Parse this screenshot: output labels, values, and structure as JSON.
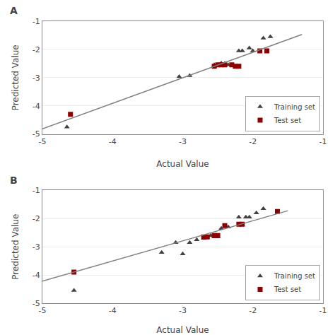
{
  "chart_data": [
    {
      "type": "scatter",
      "title": "A",
      "xlabel": "Actual Value",
      "ylabel": "Predicted Value",
      "xlim": [
        -5,
        -1
      ],
      "ylim": [
        -5,
        -1
      ],
      "xticks": [
        -5,
        -4,
        -3,
        -2,
        -1
      ],
      "yticks": [
        -5,
        -4,
        -3,
        -2,
        -1
      ],
      "grid": "y",
      "legend": "lower right",
      "series": [
        {
          "name": "Training set",
          "color": "#404040",
          "marker": "triangle",
          "x": [
            -4.65,
            -3.05,
            -2.9,
            -2.55,
            -2.55,
            -2.5,
            -2.45,
            -2.45,
            -2.4,
            -2.35,
            -2.3,
            -2.2,
            -2.15,
            -2.05,
            -2.0,
            -1.85,
            -1.75
          ],
          "values": [
            -4.75,
            -2.97,
            -2.93,
            -2.55,
            -2.6,
            -2.55,
            -2.5,
            -2.5,
            -2.5,
            -2.55,
            -2.55,
            -2.05,
            -2.05,
            -1.95,
            -2.05,
            -1.6,
            -1.55
          ]
        },
        {
          "name": "Test set",
          "color": "#8B0000",
          "marker": "square",
          "x": [
            -4.6,
            -2.55,
            -2.5,
            -2.45,
            -2.4,
            -2.3,
            -2.25,
            -2.2,
            -1.9,
            -1.8
          ],
          "values": [
            -4.3,
            -2.6,
            -2.55,
            -2.55,
            -2.55,
            -2.55,
            -2.6,
            -2.6,
            -2.05,
            -2.05
          ]
        },
        {
          "type": "line",
          "color": "#808080",
          "x": [
            -5.0,
            -1.3
          ],
          "values": [
            -4.82,
            -1.47
          ]
        }
      ]
    },
    {
      "type": "scatter",
      "title": "B",
      "xlabel": "Actual Value",
      "ylabel": "Predicted Value",
      "xlim": [
        -5,
        -1
      ],
      "ylim": [
        -5,
        -1
      ],
      "xticks": [
        -5,
        -4,
        -3,
        -2,
        -1
      ],
      "yticks": [
        -5,
        -4,
        -3,
        -2,
        -1
      ],
      "grid": "y",
      "legend": "lower right",
      "series": [
        {
          "name": "Training set",
          "color": "#404040",
          "marker": "triangle",
          "x": [
            -4.55,
            -3.3,
            -3.1,
            -3.0,
            -2.9,
            -2.8,
            -2.7,
            -2.65,
            -2.6,
            -2.55,
            -2.5,
            -2.45,
            -2.35,
            -2.2,
            -2.1,
            -2.05,
            -1.95,
            -1.85
          ],
          "values": [
            -4.55,
            -3.2,
            -2.85,
            -3.25,
            -2.85,
            -2.75,
            -2.7,
            -2.65,
            -2.6,
            -2.65,
            -2.65,
            -2.35,
            -2.3,
            -1.95,
            -1.95,
            -1.95,
            -1.8,
            -1.65
          ]
        },
        {
          "name": "Test set",
          "color": "#8B0000",
          "marker": "square",
          "x": [
            -4.55,
            -2.7,
            -2.65,
            -2.55,
            -2.5,
            -2.4,
            -2.2,
            -2.15,
            -1.65
          ],
          "values": [
            -3.9,
            -2.65,
            -2.65,
            -2.6,
            -2.6,
            -2.25,
            -2.2,
            -2.2,
            -1.75
          ]
        },
        {
          "type": "line",
          "color": "#808080",
          "x": [
            -5.0,
            -1.5
          ],
          "values": [
            -4.22,
            -1.72
          ]
        }
      ]
    }
  ]
}
